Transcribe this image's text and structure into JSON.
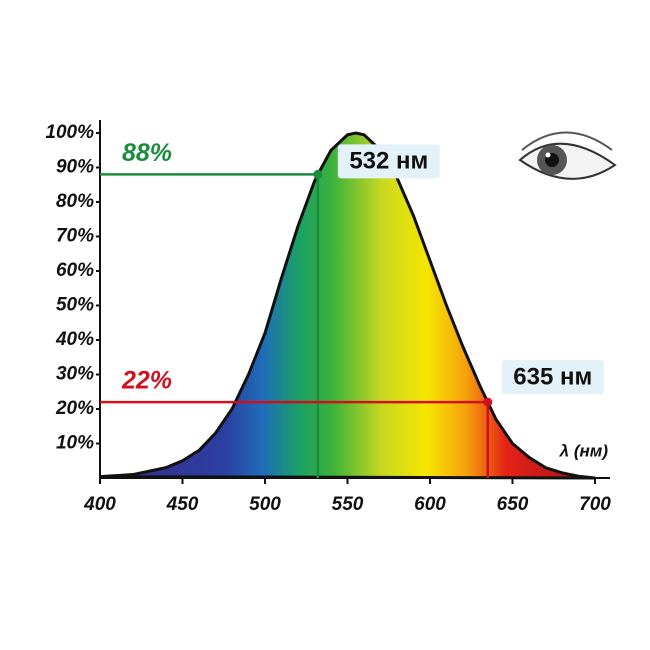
{
  "chart_data": {
    "type": "area",
    "color": "#111111",
    "x": [
      400,
      420,
      440,
      450,
      460,
      470,
      480,
      490,
      500,
      510,
      520,
      530,
      532,
      540,
      550,
      555,
      560,
      570,
      580,
      590,
      600,
      610,
      620,
      630,
      635,
      640,
      650,
      660,
      670,
      680,
      690,
      700
    ],
    "values": [
      0.4,
      1,
      3,
      5,
      8,
      13,
      20,
      30,
      42,
      58,
      73,
      86,
      88,
      95,
      99.5,
      100,
      99.5,
      95,
      87,
      76,
      63,
      50,
      38,
      27,
      22,
      17,
      10,
      6,
      3,
      1.5,
      0.5,
      0
    ],
    "xlim": [
      400,
      700
    ],
    "ylim": [
      0,
      100
    ],
    "xticks": [
      400,
      450,
      500,
      550,
      600,
      650,
      700
    ],
    "yticks": [
      {
        "value": 10,
        "label": "10%"
      },
      {
        "value": 20,
        "label": "20%"
      },
      {
        "value": 30,
        "label": "30%"
      },
      {
        "value": 40,
        "label": "40%"
      },
      {
        "value": 50,
        "label": "50%"
      },
      {
        "value": 60,
        "label": "60%"
      },
      {
        "value": 70,
        "label": "70%"
      },
      {
        "value": 80,
        "label": "80%"
      },
      {
        "value": 90,
        "label": "90%"
      },
      {
        "value": 100,
        "label": "100%"
      }
    ],
    "xlabel": "λ (нм)",
    "annotations": [
      {
        "x": 532,
        "y": 88,
        "label": "88%",
        "x_label": "532 нм",
        "color": "#1a8c3c"
      },
      {
        "x": 635,
        "y": 22,
        "label": "22%",
        "x_label": "635 нм",
        "color": "#d0101c"
      }
    ]
  }
}
